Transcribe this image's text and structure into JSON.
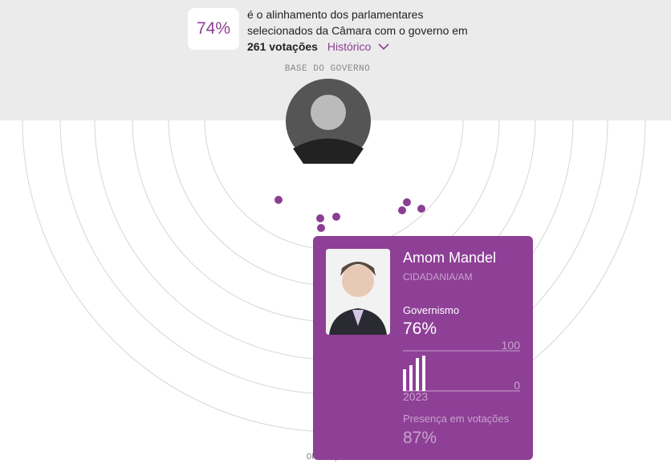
{
  "header": {
    "alignment": "74%",
    "text_line1": "é o alinhamento dos parlamentares",
    "text_line2": "selecionados da Câmara com o governo em",
    "votes": "261 votações",
    "history": "Histórico"
  },
  "base_label": "BASE DO GOVERNO",
  "opposition_label": "OPOSIÇÃO",
  "card": {
    "name": "Amom Mandel",
    "party": "CIDADANIA/AM",
    "metric_label": "Governismo",
    "metric_value": "76%",
    "mini_chart": {
      "yticks": [
        100,
        0
      ],
      "ylim": [
        0,
        100
      ],
      "values": [
        54,
        64,
        82,
        88
      ],
      "year": "2023"
    },
    "presence_label": "Presença em votações",
    "presence_value": "87%"
  }
}
